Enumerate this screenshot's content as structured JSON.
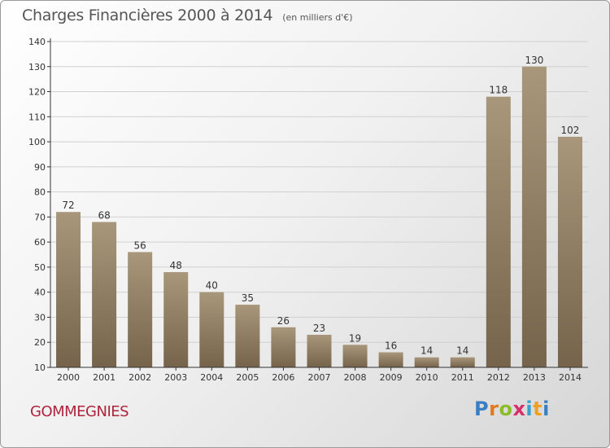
{
  "header": {
    "title": "Charges Financières 2000 à 2014",
    "subtitle": "(en milliers d'€)"
  },
  "footer": {
    "place": "GOMMEGNIES",
    "brand": "Proxiti"
  },
  "colors": {
    "bar_top": "#a8977a",
    "bar_bottom": "#75634b",
    "axis": "#333333",
    "grid": "#d0d0d0",
    "place": "#b0243c"
  },
  "chart_data": {
    "type": "bar",
    "title": "Charges Financières 2000 à 2014",
    "subtitle": "(en milliers d'€)",
    "xlabel": "",
    "ylabel": "",
    "categories": [
      "2000",
      "2001",
      "2002",
      "2003",
      "2004",
      "2005",
      "2006",
      "2007",
      "2008",
      "2009",
      "2010",
      "2011",
      "2012",
      "2013",
      "2014"
    ],
    "values": [
      72,
      68,
      56,
      48,
      40,
      35,
      26,
      23,
      19,
      16,
      14,
      14,
      118,
      130,
      102
    ],
    "ylim": [
      10,
      140
    ],
    "yticks": [
      10,
      20,
      30,
      40,
      50,
      60,
      70,
      80,
      90,
      100,
      110,
      120,
      130,
      140
    ],
    "grid": true,
    "legend": "none"
  }
}
